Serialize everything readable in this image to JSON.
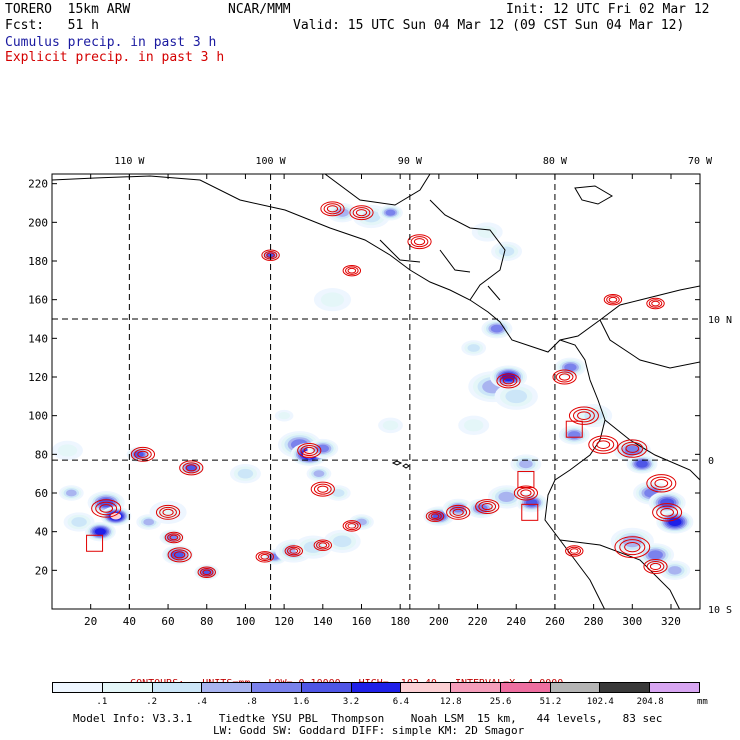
{
  "header": {
    "model": "TORERO  15km ARW",
    "source": "NCAR/MMM",
    "init": "Init: 12 UTC Fri 02 Mar 12",
    "fcst": "Fcst:   51 h",
    "valid": "Valid: 15 UTC Sun 04 Mar 12 (09 CST Sun 04 Mar 12)",
    "legend_cumulus": "Cumulus precip. in past 3 h",
    "legend_explicit": "Explicit precip. in past 3 h"
  },
  "colors": {
    "cumulus_text": "#1a1aa0",
    "explicit_text": "#d40000",
    "contour_line": "#e00000",
    "land_line": "#000000"
  },
  "chart_data": {
    "type": "heatmap",
    "title": "Cumulus precip. in past 3 h / Explicit precip. in past 3 h",
    "xlabel": "",
    "ylabel": "",
    "x_grid_ticks": [
      20,
      40,
      60,
      80,
      100,
      120,
      140,
      160,
      180,
      200,
      220,
      240,
      260,
      280,
      300,
      320
    ],
    "y_grid_ticks": [
      20,
      40,
      60,
      80,
      100,
      120,
      140,
      160,
      180,
      200,
      220
    ],
    "xlim": [
      0,
      335
    ],
    "ylim": [
      0,
      225
    ],
    "lon_labels": [
      "110 W",
      "100 W",
      "90 W",
      "80 W",
      "70 W"
    ],
    "lat_labels": [
      "10 N",
      "0",
      "10 S"
    ],
    "dashed_lon_grid_x": [
      40,
      113,
      185,
      260
    ],
    "dashed_lat_grid_y": [
      150,
      77
    ],
    "contours": {
      "label": "CONTOURS:",
      "units": "UNITS=mm",
      "low": "LOW= 0.10000",
      "high": "HIGH=  102.40",
      "interval": "INTERVAL=X  4.0000"
    },
    "colorbar": {
      "colors": [
        "#ffffff",
        "#ffffff",
        "#eef6ff",
        "#e4f6f8",
        "#cce6f8",
        "#a9b4f0",
        "#7a82ec",
        "#4f56e6",
        "#1f20e8",
        "#fcd0d4",
        "#f59ebb",
        "#ee6ea0",
        "#b5b5b5",
        "#3a3a3a",
        "#d8a6f2"
      ],
      "labels": [
        ".1",
        ".2",
        ".4",
        ".8",
        "1.6",
        "3.2",
        "6.4",
        "12.8",
        "25.6",
        "51.2",
        "102.4",
        "204.8"
      ],
      "units": "mm"
    },
    "cells": [
      {
        "x": 8,
        "y": 82,
        "r": 5,
        "level": 3
      },
      {
        "x": 10,
        "y": 60,
        "r": 4,
        "level": 5
      },
      {
        "x": 14,
        "y": 45,
        "r": 5,
        "level": 4
      },
      {
        "x": 28,
        "y": 55,
        "r": 6,
        "level": 7
      },
      {
        "x": 33,
        "y": 48,
        "r": 5,
        "level": 9
      },
      {
        "x": 25,
        "y": 40,
        "r": 5,
        "level": 8
      },
      {
        "x": 45,
        "y": 80,
        "r": 4,
        "level": 7
      },
      {
        "x": 50,
        "y": 45,
        "r": 4,
        "level": 5
      },
      {
        "x": 60,
        "y": 50,
        "r": 6,
        "level": 3
      },
      {
        "x": 72,
        "y": 73,
        "r": 4,
        "level": 7
      },
      {
        "x": 62,
        "y": 37,
        "r": 4,
        "level": 6
      },
      {
        "x": 65,
        "y": 28,
        "r": 5,
        "level": 7
      },
      {
        "x": 80,
        "y": 19,
        "r": 4,
        "level": 7
      },
      {
        "x": 100,
        "y": 70,
        "r": 5,
        "level": 4
      },
      {
        "x": 115,
        "y": 27,
        "r": 4,
        "level": 6
      },
      {
        "x": 125,
        "y": 30,
        "r": 6,
        "level": 5
      },
      {
        "x": 135,
        "y": 32,
        "r": 6,
        "level": 4
      },
      {
        "x": 150,
        "y": 35,
        "r": 6,
        "level": 4
      },
      {
        "x": 120,
        "y": 100,
        "r": 3,
        "level": 3
      },
      {
        "x": 128,
        "y": 85,
        "r": 7,
        "level": 6
      },
      {
        "x": 133,
        "y": 80,
        "r": 6,
        "level": 9
      },
      {
        "x": 140,
        "y": 83,
        "r": 5,
        "level": 6
      },
      {
        "x": 138,
        "y": 70,
        "r": 4,
        "level": 5
      },
      {
        "x": 148,
        "y": 60,
        "r": 4,
        "level": 4
      },
      {
        "x": 160,
        "y": 45,
        "r": 4,
        "level": 5
      },
      {
        "x": 200,
        "y": 48,
        "r": 5,
        "level": 7
      },
      {
        "x": 210,
        "y": 52,
        "r": 5,
        "level": 6
      },
      {
        "x": 222,
        "y": 52,
        "r": 5,
        "level": 6
      },
      {
        "x": 235,
        "y": 58,
        "r": 6,
        "level": 5
      },
      {
        "x": 248,
        "y": 55,
        "r": 5,
        "level": 7
      },
      {
        "x": 245,
        "y": 75,
        "r": 5,
        "level": 5
      },
      {
        "x": 228,
        "y": 115,
        "r": 8,
        "level": 5
      },
      {
        "x": 236,
        "y": 120,
        "r": 6,
        "level": 8
      },
      {
        "x": 240,
        "y": 110,
        "r": 7,
        "level": 4
      },
      {
        "x": 218,
        "y": 95,
        "r": 5,
        "level": 3
      },
      {
        "x": 175,
        "y": 95,
        "r": 4,
        "level": 3
      },
      {
        "x": 268,
        "y": 125,
        "r": 5,
        "level": 6
      },
      {
        "x": 270,
        "y": 90,
        "r": 5,
        "level": 6
      },
      {
        "x": 280,
        "y": 100,
        "r": 6,
        "level": 4
      },
      {
        "x": 300,
        "y": 82,
        "r": 6,
        "level": 6
      },
      {
        "x": 305,
        "y": 75,
        "r": 5,
        "level": 7
      },
      {
        "x": 310,
        "y": 60,
        "r": 6,
        "level": 6
      },
      {
        "x": 318,
        "y": 55,
        "r": 6,
        "level": 7
      },
      {
        "x": 322,
        "y": 45,
        "r": 6,
        "level": 8
      },
      {
        "x": 300,
        "y": 35,
        "r": 7,
        "level": 5
      },
      {
        "x": 312,
        "y": 28,
        "r": 6,
        "level": 6
      },
      {
        "x": 322,
        "y": 20,
        "r": 5,
        "level": 5
      },
      {
        "x": 150,
        "y": 205,
        "r": 5,
        "level": 5
      },
      {
        "x": 165,
        "y": 203,
        "r": 6,
        "level": 4
      },
      {
        "x": 175,
        "y": 205,
        "r": 4,
        "level": 6
      },
      {
        "x": 225,
        "y": 195,
        "r": 5,
        "level": 3
      },
      {
        "x": 235,
        "y": 185,
        "r": 5,
        "level": 4
      },
      {
        "x": 230,
        "y": 145,
        "r": 5,
        "level": 6
      },
      {
        "x": 218,
        "y": 135,
        "r": 4,
        "level": 4
      },
      {
        "x": 145,
        "y": 160,
        "r": 6,
        "level": 3
      },
      {
        "x": 113,
        "y": 183,
        "r": 3,
        "level": 7
      }
    ],
    "contour_centers": [
      {
        "x": 28,
        "y": 52,
        "r": 5
      },
      {
        "x": 47,
        "y": 80,
        "r": 4
      },
      {
        "x": 72,
        "y": 73,
        "r": 4
      },
      {
        "x": 60,
        "y": 50,
        "r": 4
      },
      {
        "x": 63,
        "y": 37,
        "r": 3
      },
      {
        "x": 66,
        "y": 28,
        "r": 4
      },
      {
        "x": 80,
        "y": 19,
        "r": 3
      },
      {
        "x": 110,
        "y": 27,
        "r": 3
      },
      {
        "x": 125,
        "y": 30,
        "r": 3
      },
      {
        "x": 140,
        "y": 33,
        "r": 3
      },
      {
        "x": 133,
        "y": 82,
        "r": 4
      },
      {
        "x": 140,
        "y": 62,
        "r": 4
      },
      {
        "x": 155,
        "y": 43,
        "r": 3
      },
      {
        "x": 198,
        "y": 48,
        "r": 3
      },
      {
        "x": 210,
        "y": 50,
        "r": 4
      },
      {
        "x": 225,
        "y": 53,
        "r": 4
      },
      {
        "x": 245,
        "y": 60,
        "r": 4
      },
      {
        "x": 236,
        "y": 118,
        "r": 4
      },
      {
        "x": 265,
        "y": 120,
        "r": 4
      },
      {
        "x": 275,
        "y": 100,
        "r": 5
      },
      {
        "x": 285,
        "y": 85,
        "r": 5
      },
      {
        "x": 300,
        "y": 83,
        "r": 5
      },
      {
        "x": 315,
        "y": 65,
        "r": 5
      },
      {
        "x": 318,
        "y": 50,
        "r": 5
      },
      {
        "x": 300,
        "y": 32,
        "r": 6
      },
      {
        "x": 312,
        "y": 22,
        "r": 4
      },
      {
        "x": 270,
        "y": 30,
        "r": 3
      },
      {
        "x": 160,
        "y": 205,
        "r": 4
      },
      {
        "x": 145,
        "y": 207,
        "r": 4
      },
      {
        "x": 190,
        "y": 190,
        "r": 4
      },
      {
        "x": 113,
        "y": 183,
        "r": 3
      },
      {
        "x": 155,
        "y": 175,
        "r": 3
      },
      {
        "x": 312,
        "y": 158,
        "r": 3
      },
      {
        "x": 290,
        "y": 160,
        "r": 3
      }
    ],
    "marker_boxes": [
      {
        "x": 22,
        "y": 34
      },
      {
        "x": 245,
        "y": 67
      },
      {
        "x": 247,
        "y": 50
      },
      {
        "x": 270,
        "y": 93
      }
    ]
  },
  "footer": {
    "model_info": "Model Info: V3.3.1    Tiedtke YSU PBL  Thompson    Noah LSM  15 km,   44 levels,   83 sec",
    "model_info2": "LW: Godd SW: Goddard DIFF: simple KM: 2D Smagor"
  }
}
